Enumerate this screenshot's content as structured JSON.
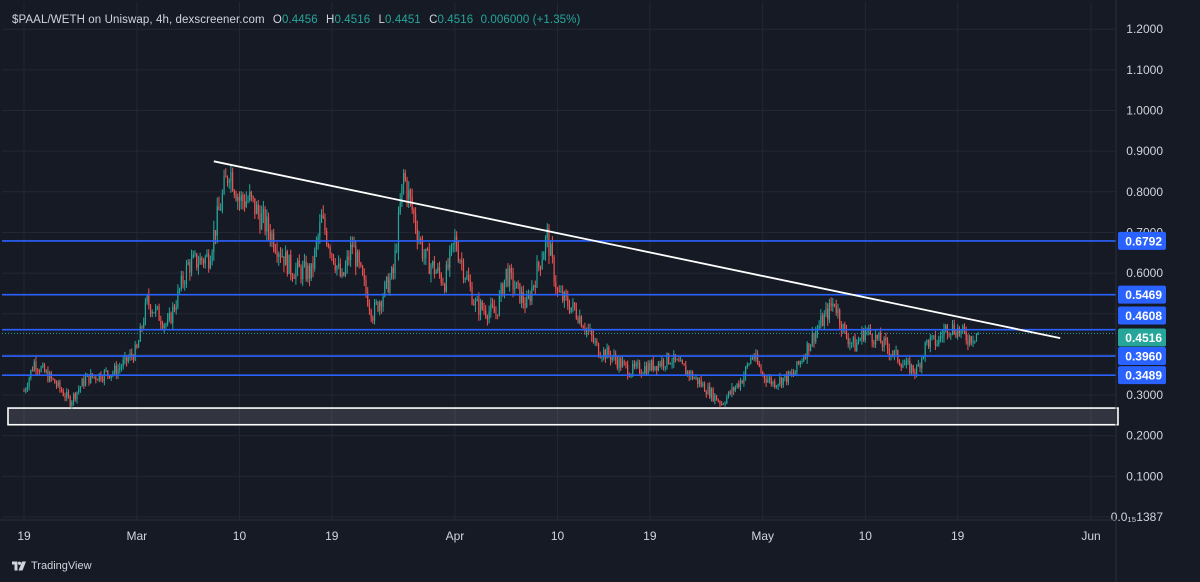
{
  "header": {
    "symbol_line": "$PAAL/WETH on Uniswap, 4h, dexscreener.com",
    "open_label": "O",
    "open": "0.4456",
    "high_label": "H",
    "high": "0.4516",
    "low_label": "L",
    "low": "0.4451",
    "close_label": "C",
    "close": "0.4516",
    "change": "0.006000 (+1.35%)"
  },
  "footer": {
    "brand": "TradingView"
  },
  "colors": {
    "background": "#161a25",
    "grid": "#232733",
    "up": "#26a69a",
    "down": "#ef5350",
    "level_line": "#2962ff",
    "trendline": "#ffffff",
    "last_price": "#26a69a"
  },
  "chart_data": {
    "type": "candlestick",
    "title": "$PAAL/WETH on Uniswap, 4h, dexscreener.com",
    "y_axis": {
      "range": [
        0.0,
        1.26
      ],
      "tick_labels": [
        "1.2000",
        "1.1000",
        "1.0000",
        "0.9000",
        "0.8000",
        "0.7000",
        "0.6000",
        "0.5000",
        "0.4000",
        "0.3000",
        "0.2000",
        "0.1000",
        "0.0₁₅1387"
      ],
      "tick_values": [
        1.2,
        1.1,
        1.0,
        0.9,
        0.8,
        0.7,
        0.6,
        0.5,
        0.4,
        0.3,
        0.2,
        0.1,
        0.0
      ]
    },
    "x_axis": {
      "tick_labels": [
        "19",
        "Mar",
        "10",
        "19",
        "Apr",
        "10",
        "19",
        "May",
        "10",
        "19",
        "Jun"
      ],
      "tick_days": [
        0,
        11,
        21,
        30,
        42,
        52,
        61,
        72,
        82,
        91,
        104
      ]
    },
    "approx_close_path": [
      {
        "day": 0,
        "price": 0.31
      },
      {
        "day": 1,
        "price": 0.38
      },
      {
        "day": 3,
        "price": 0.33
      },
      {
        "day": 4.5,
        "price": 0.285
      },
      {
        "day": 6,
        "price": 0.34
      },
      {
        "day": 9,
        "price": 0.36
      },
      {
        "day": 11,
        "price": 0.41
      },
      {
        "day": 12,
        "price": 0.53
      },
      {
        "day": 14,
        "price": 0.47
      },
      {
        "day": 16,
        "price": 0.62
      },
      {
        "day": 18,
        "price": 0.64
      },
      {
        "day": 20,
        "price": 0.86
      },
      {
        "day": 21,
        "price": 0.78
      },
      {
        "day": 22,
        "price": 0.78
      },
      {
        "day": 24,
        "price": 0.7
      },
      {
        "day": 26,
        "price": 0.61
      },
      {
        "day": 28,
        "price": 0.6
      },
      {
        "day": 29,
        "price": 0.73
      },
      {
        "day": 31,
        "price": 0.58
      },
      {
        "day": 32,
        "price": 0.67
      },
      {
        "day": 33,
        "price": 0.58
      },
      {
        "day": 34,
        "price": 0.5
      },
      {
        "day": 36,
        "price": 0.6
      },
      {
        "day": 37,
        "price": 0.84
      },
      {
        "day": 39,
        "price": 0.64
      },
      {
        "day": 41,
        "price": 0.58
      },
      {
        "day": 42,
        "price": 0.68
      },
      {
        "day": 44,
        "price": 0.52
      },
      {
        "day": 46,
        "price": 0.5
      },
      {
        "day": 47,
        "price": 0.6
      },
      {
        "day": 49,
        "price": 0.52
      },
      {
        "day": 51,
        "price": 0.69
      },
      {
        "day": 52,
        "price": 0.55
      },
      {
        "day": 54,
        "price": 0.5
      },
      {
        "day": 56,
        "price": 0.41
      },
      {
        "day": 57,
        "price": 0.4
      },
      {
        "day": 59,
        "price": 0.36
      },
      {
        "day": 61,
        "price": 0.37
      },
      {
        "day": 63,
        "price": 0.39
      },
      {
        "day": 65,
        "price": 0.35
      },
      {
        "day": 68,
        "price": 0.28
      },
      {
        "day": 70,
        "price": 0.34
      },
      {
        "day": 71,
        "price": 0.4
      },
      {
        "day": 72,
        "price": 0.35
      },
      {
        "day": 73,
        "price": 0.33
      },
      {
        "day": 75,
        "price": 0.35
      },
      {
        "day": 77,
        "price": 0.45
      },
      {
        "day": 79,
        "price": 0.53
      },
      {
        "day": 80,
        "price": 0.45
      },
      {
        "day": 81,
        "price": 0.42
      },
      {
        "day": 82,
        "price": 0.46
      },
      {
        "day": 84,
        "price": 0.42
      },
      {
        "day": 86,
        "price": 0.37
      },
      {
        "day": 87,
        "price": 0.36
      },
      {
        "day": 88,
        "price": 0.43
      },
      {
        "day": 89,
        "price": 0.43
      },
      {
        "day": 90,
        "price": 0.47
      },
      {
        "day": 91,
        "price": 0.46
      },
      {
        "day": 92,
        "price": 0.44
      },
      {
        "day": 93,
        "price": 0.4516
      }
    ],
    "horizontal_levels": [
      {
        "price": 0.6792,
        "label": "0.6792"
      },
      {
        "price": 0.5469,
        "label": "0.5469"
      },
      {
        "price": 0.4608,
        "label": "0.4608"
      },
      {
        "price": 0.396,
        "label": "0.3960"
      },
      {
        "price": 0.3489,
        "label": "0.3489"
      }
    ],
    "last_price": {
      "price": 0.4516,
      "label": "0.4516"
    },
    "support_zone": {
      "from": 0.227,
      "to": 0.268
    },
    "trendline": {
      "from": {
        "day": 18.5,
        "price": 0.875
      },
      "to": {
        "day": 101,
        "price": 0.44
      }
    }
  }
}
